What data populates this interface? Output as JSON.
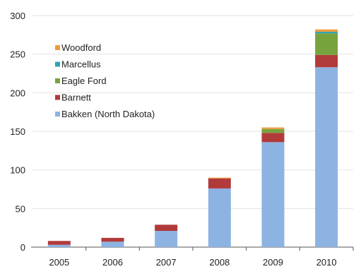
{
  "chart_data": {
    "type": "bar",
    "stacked": true,
    "categories": [
      "2005",
      "2006",
      "2007",
      "2008",
      "2009",
      "2010"
    ],
    "series": [
      {
        "name": "Bakken (North Dakota)",
        "color": "#8db3e2",
        "values": [
          3,
          7,
          21,
          76,
          136,
          233
        ]
      },
      {
        "name": "Barnett",
        "color": "#b13a3a",
        "values": [
          5,
          5,
          8,
          13,
          12,
          16
        ]
      },
      {
        "name": "Eagle Ford",
        "color": "#77a33c",
        "values": [
          0,
          0,
          0,
          0,
          5,
          28
        ]
      },
      {
        "name": "Marcellus",
        "color": "#2fa3b8",
        "values": [
          0,
          0,
          0,
          0,
          0,
          2
        ]
      },
      {
        "name": "Woodford",
        "color": "#f39a3c",
        "values": [
          0,
          0,
          0,
          1,
          2,
          3
        ]
      }
    ],
    "legend_order": [
      "Woodford",
      "Marcellus",
      "Eagle Ford",
      "Barnett",
      "Bakken (North Dakota)"
    ],
    "ylim": [
      0,
      300
    ],
    "yticks": [
      0,
      50,
      100,
      150,
      200,
      250,
      300
    ],
    "grid": true,
    "legend_position": "upper-left"
  }
}
